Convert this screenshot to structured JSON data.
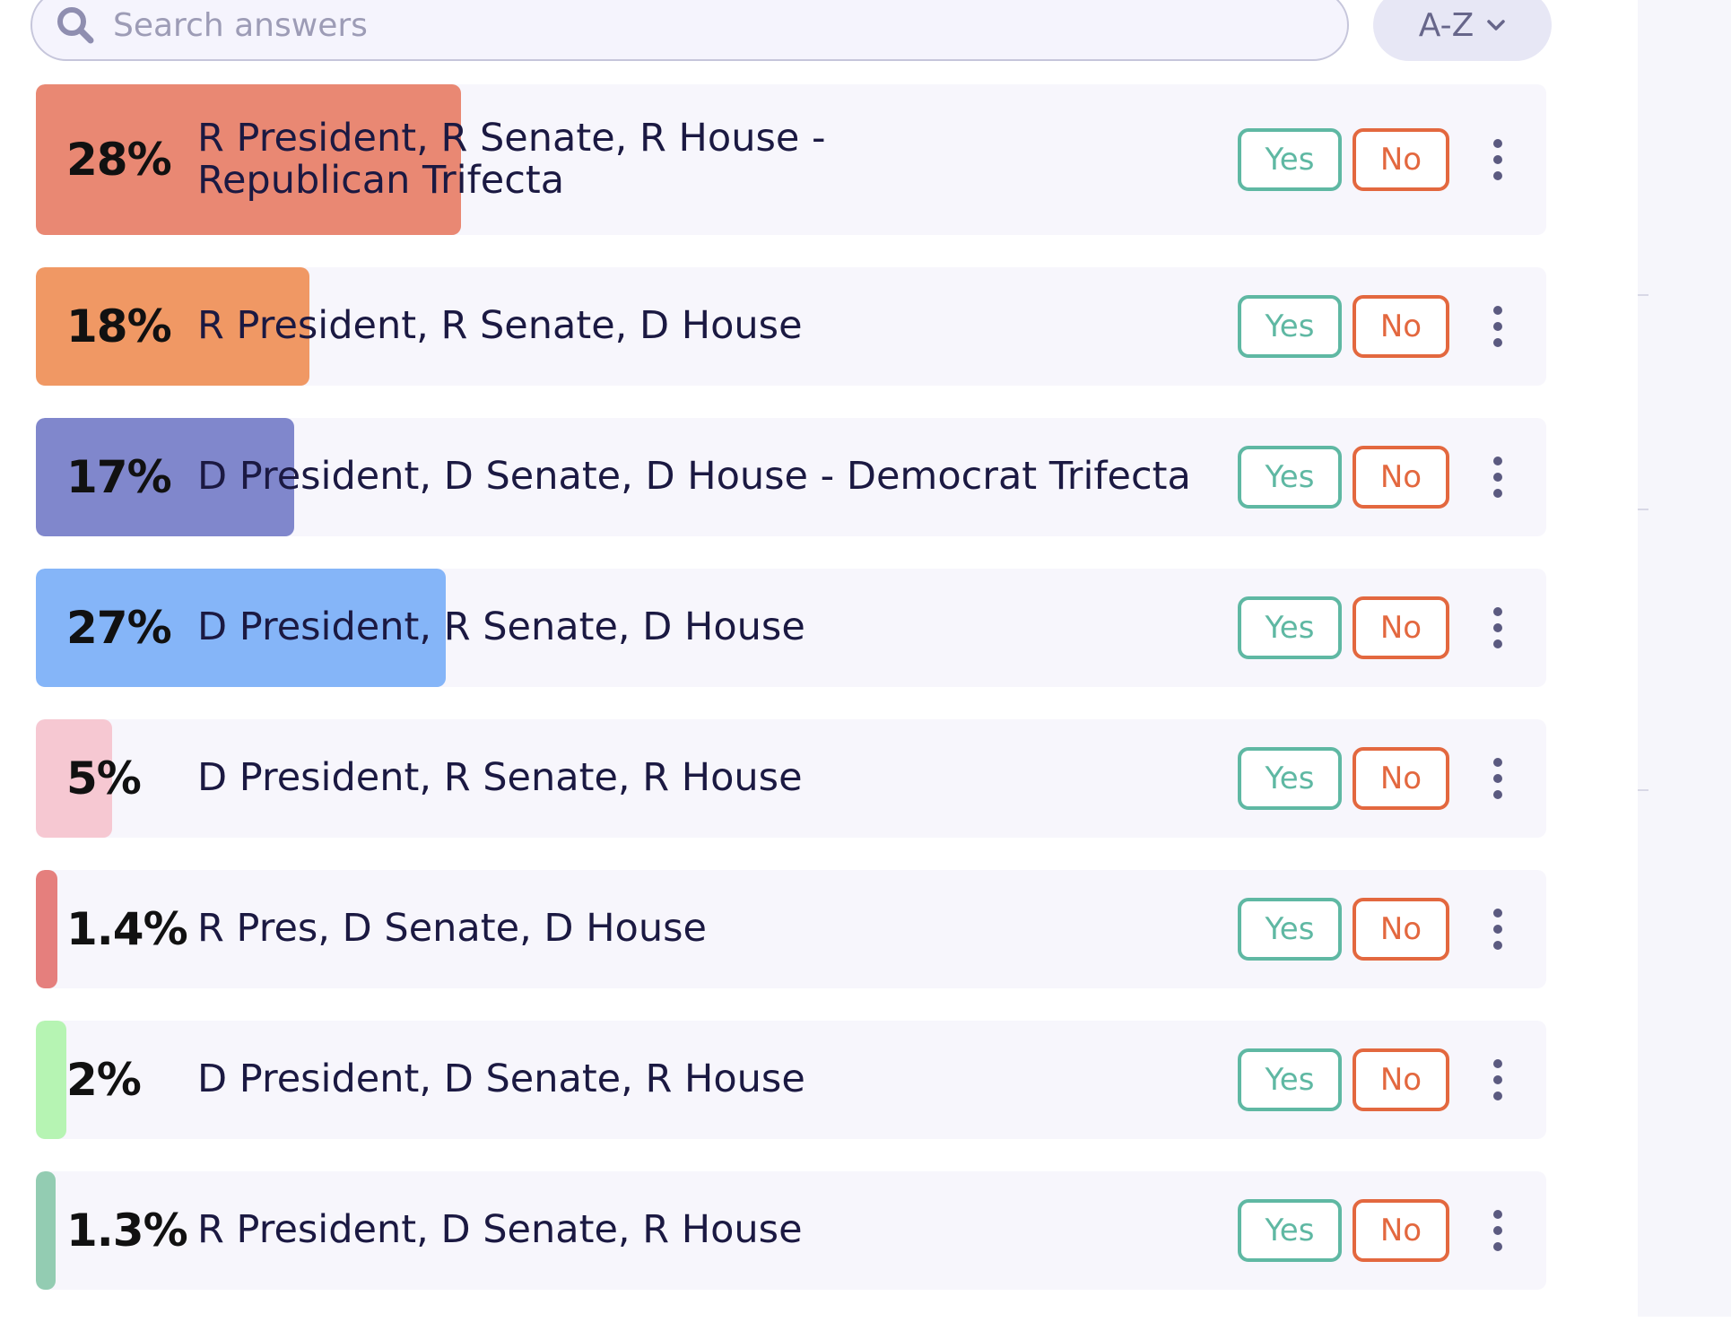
{
  "search": {
    "placeholder": "Search answers",
    "value": ""
  },
  "sort": {
    "label": "A-Z"
  },
  "answers": [
    {
      "percent": "28%",
      "label": "R President, R Senate, R House - Republican Trifecta",
      "share": 0.28,
      "color": "#e98873",
      "yes": "Yes",
      "no": "No"
    },
    {
      "percent": "18%",
      "label": "R President, R Senate, D House",
      "share": 0.18,
      "color": "#f09864",
      "yes": "Yes",
      "no": "No"
    },
    {
      "percent": "17%",
      "label": "D President, D Senate, D House - Democrat Trifecta",
      "share": 0.17,
      "color": "#8087cc",
      "yes": "Yes",
      "no": "No"
    },
    {
      "percent": "27%",
      "label": "D President, R Senate, D House",
      "share": 0.27,
      "color": "#85b5f8",
      "yes": "Yes",
      "no": "No"
    },
    {
      "percent": "5%",
      "label": "D President, R Senate, R House",
      "share": 0.05,
      "color": "#f6c8d2",
      "yes": "Yes",
      "no": "No"
    },
    {
      "percent": "1.4%",
      "label": "R Pres, D Senate, D House",
      "share": 0.014,
      "color": "#e57f7d",
      "yes": "Yes",
      "no": "No"
    },
    {
      "percent": "2%",
      "label": "D President, D Senate, R House",
      "share": 0.02,
      "color": "#b6f4b3",
      "yes": "Yes",
      "no": "No"
    },
    {
      "percent": "1.3%",
      "label": "R President, D Senate, R House",
      "share": 0.013,
      "color": "#93ccb2",
      "yes": "Yes",
      "no": "No"
    }
  ],
  "colors": {
    "yes": "#5fb8a3",
    "no": "#e3683f",
    "row_background": "#f7f6fc"
  },
  "icons": {
    "search": "search-icon",
    "sort": "chevron-down-icon",
    "more": "more-vertical-icon"
  }
}
